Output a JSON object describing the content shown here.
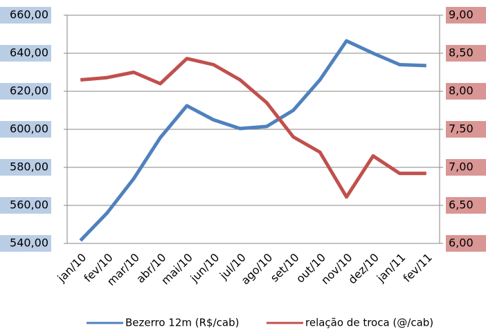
{
  "chart_data": {
    "type": "line",
    "categories": [
      "jan/10",
      "fev/10",
      "mar/10",
      "abr/10",
      "mai/10",
      "jun/10",
      "jul/10",
      "ago/10",
      "set/10",
      "out/10",
      "nov/10",
      "dez/10",
      "jan/11",
      "fev/11"
    ],
    "series": [
      {
        "name": "Bezerro 12m (R$/cab)",
        "color": "#4f81bd",
        "values": [
          541.5,
          556,
          574,
          595.6,
          612.4,
          605,
          600.4,
          601.5,
          610,
          626,
          646.5,
          640,
          634,
          633.5
        ]
      },
      {
        "name": "relação de troca (@/cab)",
        "color": "#c0504d",
        "axis": "y2",
        "values": [
          8.15,
          8.18,
          8.25,
          8.1,
          8.43,
          8.35,
          8.15,
          7.85,
          7.4,
          7.2,
          6.61,
          7.15,
          6.92,
          6.92
        ]
      }
    ],
    "ylim": [
      540,
      660
    ],
    "yticks": [
      {
        "value": 540,
        "label": "540,00"
      },
      {
        "value": 560,
        "label": "560,00"
      },
      {
        "value": 580,
        "label": "580,00"
      },
      {
        "value": 600,
        "label": "600,00"
      },
      {
        "value": 620,
        "label": "620,00"
      },
      {
        "value": 640,
        "label": "640,00"
      },
      {
        "value": 660,
        "label": "660,00"
      }
    ],
    "y2lim": [
      6,
      9
    ],
    "y2ticks": [
      {
        "value": 6,
        "label": "6,00"
      },
      {
        "value": 6.5,
        "label": "6,50"
      },
      {
        "value": 7,
        "label": "7,00"
      },
      {
        "value": 7.5,
        "label": "7,50"
      },
      {
        "value": 8,
        "label": "8,00"
      },
      {
        "value": 8.5,
        "label": "8,50"
      },
      {
        "value": 9,
        "label": "9,00"
      }
    ],
    "grid": true,
    "legend": "bottom"
  }
}
